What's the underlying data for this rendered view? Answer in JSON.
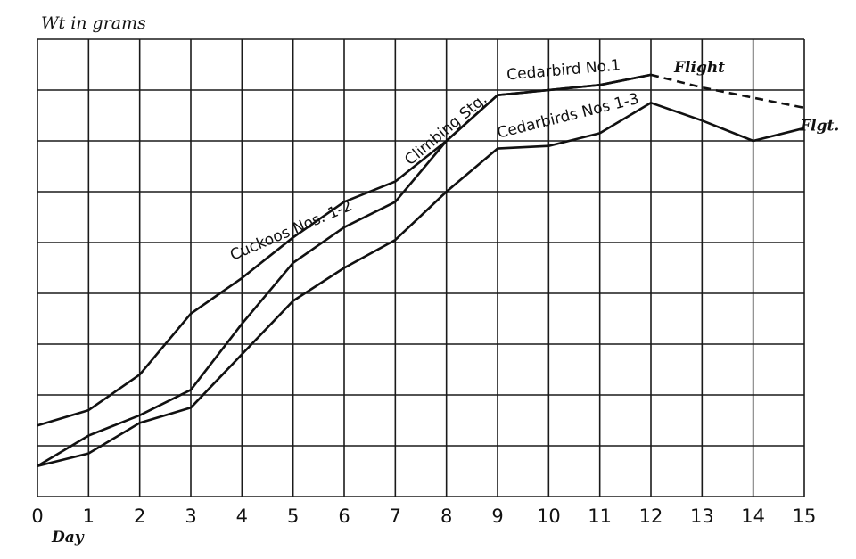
{
  "chart_data": {
    "type": "line",
    "ylabel": "Wt in grams",
    "xlabel": "Day",
    "xlim": [
      0,
      15
    ],
    "x_ticks": [
      "0",
      "1",
      "2",
      "3",
      "4",
      "5",
      "6",
      "7",
      "8",
      "9",
      "10",
      "11",
      "12",
      "13",
      "14",
      "15"
    ],
    "ylim": [
      0,
      9
    ],
    "grid": true,
    "series": [
      {
        "name": "Cuckoos Nos. 1-2",
        "style": "solid",
        "x": [
          0,
          1,
          2,
          3,
          4,
          5,
          6,
          7,
          8,
          9,
          10,
          11,
          12
        ],
        "y": [
          1.4,
          1.7,
          2.4,
          3.6,
          4.3,
          5.1,
          5.8,
          6.2,
          7.0,
          7.9,
          8.0,
          8.1,
          8.3
        ]
      },
      {
        "name": "Cedarbird No.1",
        "style": "solid",
        "x": [
          0,
          1,
          2,
          3,
          4,
          5,
          6,
          7,
          8,
          9,
          10,
          11,
          12
        ],
        "y": [
          0.6,
          1.2,
          1.6,
          2.1,
          3.4,
          4.6,
          5.3,
          5.8,
          7.0,
          7.9,
          8.0,
          8.1,
          8.3
        ]
      },
      {
        "name": "Cedarbirds Nos 1-3",
        "style": "solid",
        "x": [
          0,
          1,
          2,
          3,
          4,
          5,
          6,
          7,
          8,
          9,
          10,
          11,
          12,
          13,
          14,
          15
        ],
        "y": [
          0.6,
          0.85,
          1.45,
          1.75,
          2.8,
          3.85,
          4.5,
          5.05,
          6.0,
          6.85,
          6.9,
          7.15,
          7.75,
          7.4,
          7.0,
          7.25
        ]
      },
      {
        "name": "Flight",
        "style": "dashed",
        "x": [
          12,
          13,
          14,
          15
        ],
        "y": [
          8.3,
          8.05,
          7.85,
          7.65
        ]
      }
    ],
    "annotations": [
      {
        "key": "cuckoos",
        "text": "Cuckoos Nos. 1-2",
        "x": 5.0,
        "y": 5.15,
        "angle": -23
      },
      {
        "key": "climbing",
        "text": "Climbing Stg.",
        "x": 8.05,
        "y": 7.15,
        "angle": -40
      },
      {
        "key": "cedar1",
        "text": "Cedarbird No.1",
        "x": 10.3,
        "y": 8.3,
        "angle": -5
      },
      {
        "key": "cedar13",
        "text": "Cedarbirds Nos 1-3",
        "x": 10.4,
        "y": 7.4,
        "angle": -14
      },
      {
        "key": "flight",
        "text": "Flight",
        "x": 12.95,
        "y": 8.35,
        "angle": 0
      },
      {
        "key": "flgt",
        "text": "Flgt.",
        "x": 15.3,
        "y": 7.2,
        "angle": 0
      }
    ]
  }
}
